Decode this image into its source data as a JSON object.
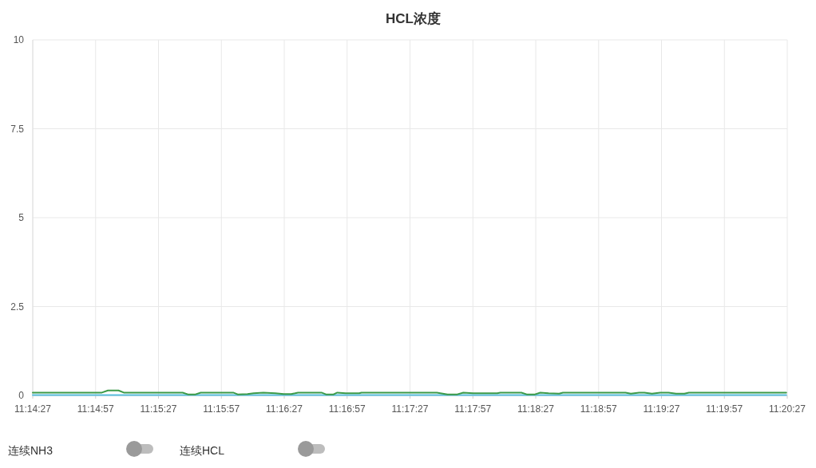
{
  "chart_data": {
    "type": "line",
    "title": "HCL浓度",
    "xlim": [
      11.240833,
      11.340833
    ],
    "ylim": [
      0,
      10
    ],
    "xticks": [
      {
        "value": 11.240833,
        "label": "11:14:27"
      },
      {
        "value": 11.249167,
        "label": "11:14:57"
      },
      {
        "value": 11.2575,
        "label": "11:15:27"
      },
      {
        "value": 11.265833,
        "label": "11:15:57"
      },
      {
        "value": 11.274167,
        "label": "11:16:27"
      },
      {
        "value": 11.2825,
        "label": "11:16:57"
      },
      {
        "value": 11.290833,
        "label": "11:17:27"
      },
      {
        "value": 11.299167,
        "label": "11:17:57"
      },
      {
        "value": 11.3075,
        "label": "11:18:27"
      },
      {
        "value": 11.315833,
        "label": "11:18:57"
      },
      {
        "value": 11.324167,
        "label": "11:19:27"
      },
      {
        "value": 11.3325,
        "label": "11:19:57"
      },
      {
        "value": 11.340833,
        "label": "11:20:27"
      }
    ],
    "yticks": [
      0,
      2.5,
      5,
      7.5,
      10
    ],
    "grid": true,
    "series": [
      {
        "color": "#5bbfe0",
        "x": [
          11.240833,
          11.3407
        ],
        "values": [
          0.01,
          0.01
        ]
      },
      {
        "color": "#3c9a48",
        "x": [
          11.240833,
          11.25,
          11.2508,
          11.2522,
          11.2529,
          11.2607,
          11.2614,
          11.2624,
          11.2631,
          11.2674,
          11.268,
          11.2693,
          11.2701,
          11.2714,
          11.273,
          11.2741,
          11.2751,
          11.2756,
          11.276,
          11.2791,
          11.2797,
          11.2807,
          11.2812,
          11.2823,
          11.2841,
          11.2844,
          11.2944,
          11.2958,
          11.2971,
          11.2979,
          11.2992,
          11.3024,
          11.3028,
          11.3056,
          11.3063,
          11.3074,
          11.3081,
          11.3092,
          11.3106,
          11.3111,
          11.3194,
          11.3201,
          11.3212,
          11.3219,
          11.3229,
          11.324,
          11.3251,
          11.3261,
          11.3272,
          11.3278,
          11.3407
        ],
        "values": [
          0.08,
          0.08,
          0.14,
          0.14,
          0.08,
          0.08,
          0.03,
          0.03,
          0.08,
          0.08,
          0.03,
          0.04,
          0.06,
          0.08,
          0.06,
          0.04,
          0.04,
          0.06,
          0.08,
          0.08,
          0.03,
          0.03,
          0.08,
          0.06,
          0.06,
          0.08,
          0.08,
          0.03,
          0.03,
          0.08,
          0.06,
          0.06,
          0.08,
          0.08,
          0.03,
          0.03,
          0.08,
          0.06,
          0.05,
          0.08,
          0.08,
          0.05,
          0.08,
          0.08,
          0.05,
          0.08,
          0.08,
          0.05,
          0.05,
          0.08,
          0.08
        ]
      }
    ],
    "annotations": [
      "连续NH3",
      "连续HCL"
    ]
  }
}
